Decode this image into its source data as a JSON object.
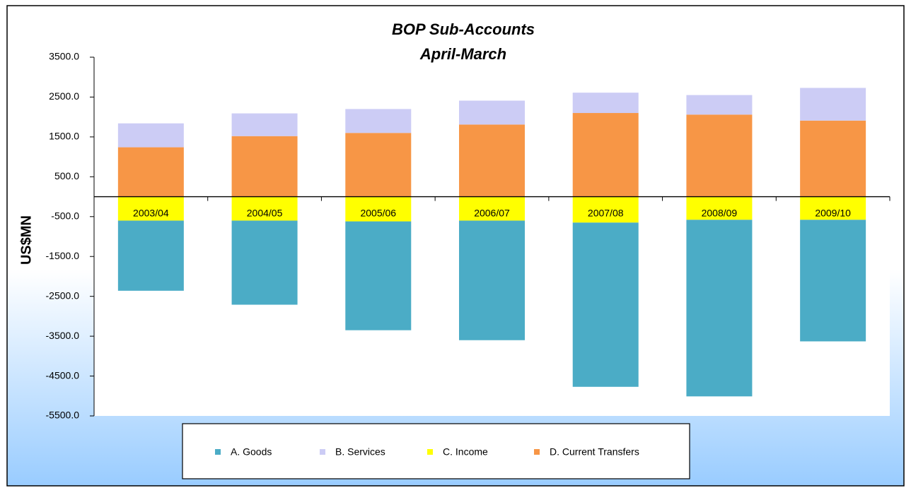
{
  "chart_data": {
    "type": "stacked_bar",
    "title": "BOP Sub-Accounts",
    "subtitle": "April-March",
    "y_label": "US$MN",
    "categories": [
      "2003/04",
      "2004/05",
      "2005/06",
      "2006/07",
      "2007/08",
      "2008/09",
      "2009/10"
    ],
    "series": [
      {
        "name": "A. Goods",
        "color": "#4bacc6",
        "values": [
          -1760,
          -2110,
          -2730,
          -3000,
          -4120,
          -4430,
          -3050
        ]
      },
      {
        "name": "B. Services",
        "color": "#ccccf5",
        "values": [
          600,
          570,
          600,
          600,
          510,
          490,
          820
        ]
      },
      {
        "name": "C. Income",
        "color": "#ffff00",
        "values": [
          -600,
          -600,
          -620,
          -600,
          -650,
          -580,
          -580
        ]
      },
      {
        "name": "D. Current Transfers",
        "color": "#f79646",
        "values": [
          1240,
          1520,
          1600,
          1810,
          2100,
          2060,
          1910
        ]
      }
    ],
    "stack_order": [
      "D. Current Transfers",
      "B. Services",
      "C. Income",
      "A. Goods"
    ],
    "ylim": [
      -5500,
      3500
    ],
    "yticks": [
      {
        "value": 3500,
        "label": "3500.0"
      },
      {
        "value": 2500,
        "label": "2500.0"
      },
      {
        "value": 1500,
        "label": "1500.0"
      },
      {
        "value": 500,
        "label": "500.0"
      },
      {
        "value": -500,
        "label": "-500.0"
      },
      {
        "value": -1500,
        "label": "-1500.0"
      },
      {
        "value": -2500,
        "label": "-2500.0"
      },
      {
        "value": -3500,
        "label": "-3500.0"
      },
      {
        "value": -4500,
        "label": "-4500.0"
      },
      {
        "value": -5500,
        "label": "-5500.0"
      }
    ],
    "legend": "bottom"
  }
}
